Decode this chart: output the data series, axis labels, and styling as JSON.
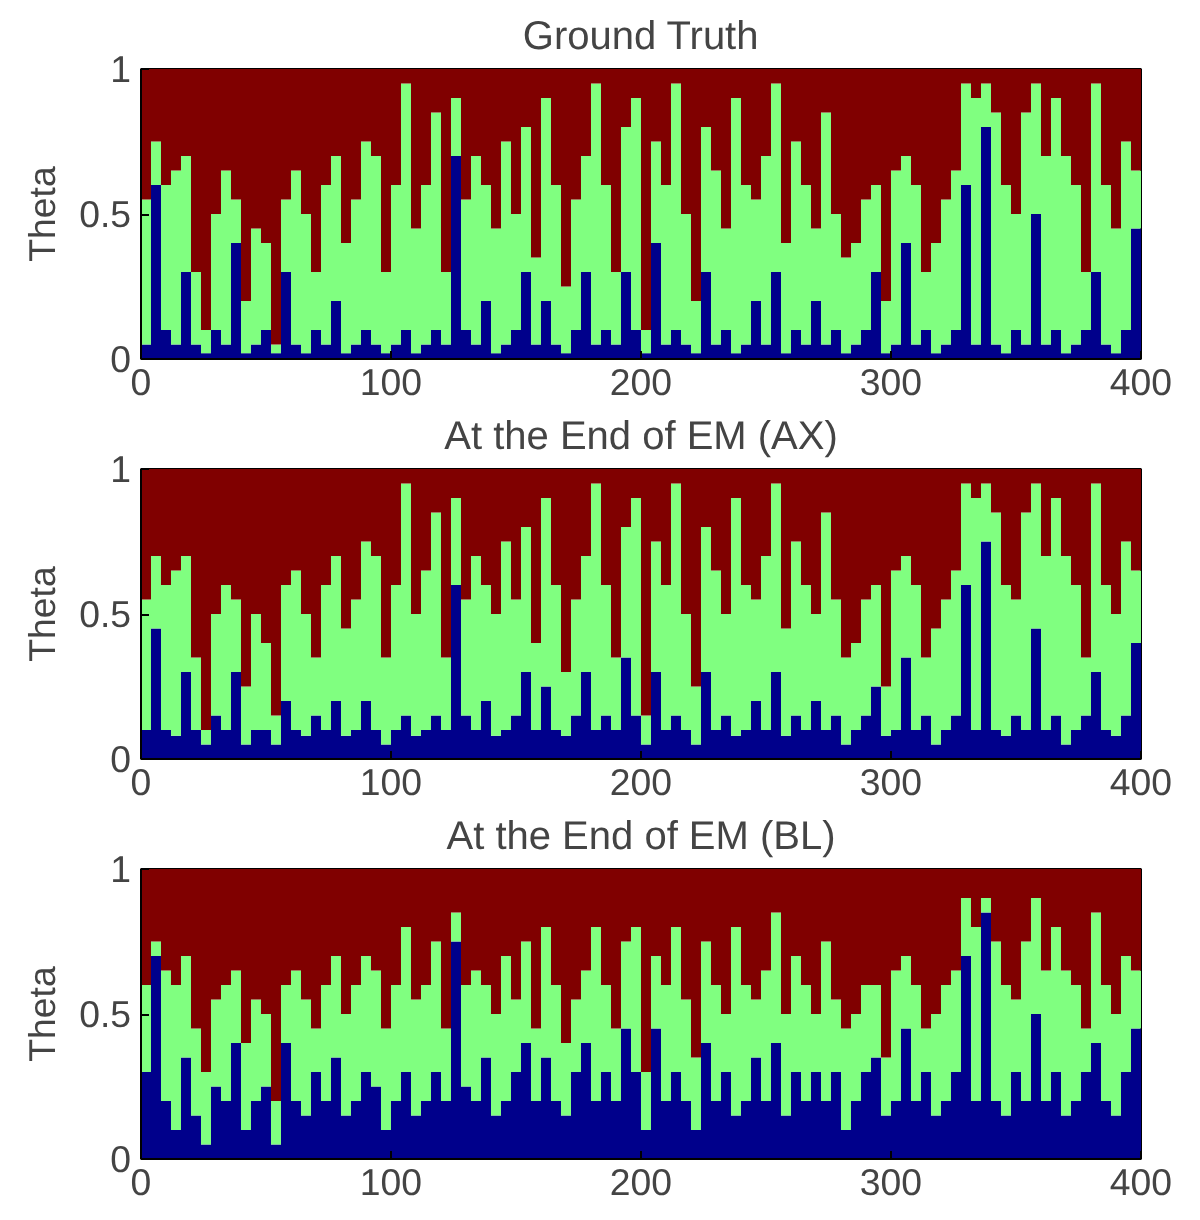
{
  "chart_data": [
    {
      "type": "bar",
      "stacked": true,
      "title": "Ground Truth",
      "ylabel": "Theta",
      "xlim": [
        0,
        400
      ],
      "xticks": [
        0,
        100,
        200,
        300,
        400
      ],
      "ylim": [
        0,
        1
      ],
      "yticks": [
        0,
        0.5,
        1
      ],
      "grid": false,
      "x": [
        2,
        6,
        10,
        14,
        18,
        22,
        26,
        30,
        34,
        38,
        42,
        46,
        50,
        54,
        58,
        62,
        66,
        70,
        74,
        78,
        82,
        86,
        90,
        94,
        98,
        102,
        106,
        110,
        114,
        118,
        122,
        126,
        130,
        134,
        138,
        142,
        146,
        150,
        154,
        158,
        162,
        166,
        170,
        174,
        178,
        182,
        186,
        190,
        194,
        198,
        202,
        206,
        210,
        214,
        218,
        222,
        226,
        230,
        234,
        238,
        242,
        246,
        250,
        254,
        258,
        262,
        266,
        270,
        274,
        278,
        282,
        286,
        290,
        294,
        298,
        302,
        306,
        310,
        314,
        318,
        322,
        326,
        330,
        334,
        338,
        342,
        346,
        350,
        354,
        358,
        362,
        366,
        370,
        374,
        378,
        382,
        386,
        390,
        394,
        398
      ],
      "series": [
        {
          "color": "#00008b",
          "values": [
            0.05,
            0.6,
            0.1,
            0.05,
            0.3,
            0.05,
            0.02,
            0.1,
            0.05,
            0.4,
            0.02,
            0.05,
            0.1,
            0.02,
            0.3,
            0.05,
            0.02,
            0.1,
            0.05,
            0.2,
            0.02,
            0.05,
            0.1,
            0.05,
            0.02,
            0.05,
            0.1,
            0.02,
            0.05,
            0.1,
            0.05,
            0.7,
            0.1,
            0.05,
            0.2,
            0.02,
            0.05,
            0.1,
            0.3,
            0.05,
            0.2,
            0.05,
            0.02,
            0.1,
            0.3,
            0.05,
            0.1,
            0.05,
            0.3,
            0.1,
            0.02,
            0.4,
            0.05,
            0.1,
            0.05,
            0.02,
            0.3,
            0.05,
            0.1,
            0.02,
            0.05,
            0.2,
            0.05,
            0.3,
            0.02,
            0.1,
            0.05,
            0.2,
            0.05,
            0.1,
            0.02,
            0.05,
            0.1,
            0.3,
            0.02,
            0.05,
            0.4,
            0.05,
            0.1,
            0.02,
            0.05,
            0.1,
            0.6,
            0.05,
            0.8,
            0.05,
            0.02,
            0.1,
            0.05,
            0.5,
            0.05,
            0.1,
            0.02,
            0.05,
            0.1,
            0.3,
            0.05,
            0.02,
            0.1,
            0.45
          ]
        },
        {
          "color": "#80ff80",
          "values": [
            0.5,
            0.15,
            0.5,
            0.6,
            0.4,
            0.25,
            0.08,
            0.4,
            0.6,
            0.15,
            0.18,
            0.4,
            0.3,
            0.03,
            0.25,
            0.6,
            0.48,
            0.2,
            0.55,
            0.5,
            0.38,
            0.5,
            0.65,
            0.65,
            0.28,
            0.55,
            0.85,
            0.43,
            0.55,
            0.75,
            0.25,
            0.2,
            0.45,
            0.65,
            0.4,
            0.43,
            0.7,
            0.4,
            0.5,
            0.3,
            0.7,
            0.55,
            0.23,
            0.45,
            0.4,
            0.9,
            0.5,
            0.25,
            0.5,
            0.8,
            0.08,
            0.35,
            0.55,
            0.85,
            0.45,
            0.18,
            0.5,
            0.6,
            0.35,
            0.88,
            0.55,
            0.35,
            0.65,
            0.65,
            0.38,
            0.65,
            0.55,
            0.25,
            0.8,
            0.4,
            0.33,
            0.35,
            0.45,
            0.3,
            0.18,
            0.6,
            0.3,
            0.55,
            0.2,
            0.38,
            0.5,
            0.55,
            0.35,
            0.85,
            0.15,
            0.8,
            0.58,
            0.4,
            0.8,
            0.45,
            0.65,
            0.8,
            0.68,
            0.55,
            0.2,
            0.65,
            0.55,
            0.43,
            0.65,
            0.2
          ]
        },
        {
          "color": "#800000",
          "values": [
            0.45,
            0.25,
            0.4,
            0.35,
            0.3,
            0.7,
            0.9,
            0.5,
            0.35,
            0.45,
            0.8,
            0.55,
            0.6,
            0.95,
            0.45,
            0.35,
            0.5,
            0.7,
            0.4,
            0.3,
            0.6,
            0.45,
            0.25,
            0.3,
            0.7,
            0.4,
            0.05,
            0.55,
            0.4,
            0.15,
            0.7,
            0.1,
            0.45,
            0.3,
            0.4,
            0.55,
            0.25,
            0.5,
            0.2,
            0.65,
            0.1,
            0.4,
            0.75,
            0.45,
            0.3,
            0.05,
            0.4,
            0.7,
            0.2,
            0.1,
            0.9,
            0.25,
            0.4,
            0.05,
            0.5,
            0.8,
            0.2,
            0.35,
            0.55,
            0.1,
            0.4,
            0.45,
            0.3,
            0.05,
            0.6,
            0.25,
            0.4,
            0.55,
            0.15,
            0.5,
            0.65,
            0.6,
            0.45,
            0.4,
            0.8,
            0.35,
            0.3,
            0.4,
            0.7,
            0.6,
            0.45,
            0.35,
            0.05,
            0.1,
            0.05,
            0.15,
            0.4,
            0.5,
            0.15,
            0.05,
            0.3,
            0.1,
            0.3,
            0.4,
            0.7,
            0.05,
            0.4,
            0.55,
            0.25,
            0.35
          ]
        }
      ]
    },
    {
      "type": "bar",
      "stacked": true,
      "title": "At the End of EM (AX)",
      "ylabel": "Theta",
      "xlim": [
        0,
        400
      ],
      "xticks": [
        0,
        100,
        200,
        300,
        400
      ],
      "ylim": [
        0,
        1
      ],
      "yticks": [
        0,
        0.5,
        1
      ],
      "grid": false,
      "x": [
        2,
        6,
        10,
        14,
        18,
        22,
        26,
        30,
        34,
        38,
        42,
        46,
        50,
        54,
        58,
        62,
        66,
        70,
        74,
        78,
        82,
        86,
        90,
        94,
        98,
        102,
        106,
        110,
        114,
        118,
        122,
        126,
        130,
        134,
        138,
        142,
        146,
        150,
        154,
        158,
        162,
        166,
        170,
        174,
        178,
        182,
        186,
        190,
        194,
        198,
        202,
        206,
        210,
        214,
        218,
        222,
        226,
        230,
        234,
        238,
        242,
        246,
        250,
        254,
        258,
        262,
        266,
        270,
        274,
        278,
        282,
        286,
        290,
        294,
        298,
        302,
        306,
        310,
        314,
        318,
        322,
        326,
        330,
        334,
        338,
        342,
        346,
        350,
        354,
        358,
        362,
        366,
        370,
        374,
        378,
        382,
        386,
        390,
        394,
        398
      ],
      "series": [
        {
          "color": "#00008b",
          "values": [
            0.1,
            0.45,
            0.1,
            0.08,
            0.3,
            0.1,
            0.05,
            0.15,
            0.1,
            0.3,
            0.05,
            0.1,
            0.1,
            0.05,
            0.2,
            0.1,
            0.08,
            0.15,
            0.1,
            0.2,
            0.08,
            0.1,
            0.2,
            0.1,
            0.05,
            0.1,
            0.15,
            0.08,
            0.1,
            0.15,
            0.1,
            0.6,
            0.15,
            0.1,
            0.2,
            0.08,
            0.1,
            0.15,
            0.3,
            0.1,
            0.25,
            0.1,
            0.08,
            0.15,
            0.3,
            0.1,
            0.15,
            0.1,
            0.35,
            0.15,
            0.05,
            0.3,
            0.1,
            0.15,
            0.1,
            0.05,
            0.3,
            0.1,
            0.15,
            0.08,
            0.1,
            0.2,
            0.1,
            0.3,
            0.08,
            0.15,
            0.1,
            0.2,
            0.1,
            0.15,
            0.05,
            0.1,
            0.15,
            0.25,
            0.08,
            0.1,
            0.35,
            0.1,
            0.15,
            0.05,
            0.1,
            0.15,
            0.6,
            0.1,
            0.75,
            0.1,
            0.08,
            0.15,
            0.1,
            0.45,
            0.1,
            0.15,
            0.05,
            0.1,
            0.15,
            0.3,
            0.1,
            0.08,
            0.15,
            0.4
          ]
        },
        {
          "color": "#80ff80",
          "values": [
            0.45,
            0.25,
            0.5,
            0.57,
            0.4,
            0.25,
            0.05,
            0.35,
            0.5,
            0.25,
            0.2,
            0.4,
            0.3,
            0.1,
            0.4,
            0.55,
            0.42,
            0.2,
            0.5,
            0.5,
            0.37,
            0.45,
            0.55,
            0.6,
            0.3,
            0.5,
            0.8,
            0.42,
            0.55,
            0.7,
            0.25,
            0.3,
            0.4,
            0.6,
            0.4,
            0.42,
            0.65,
            0.4,
            0.5,
            0.3,
            0.65,
            0.5,
            0.22,
            0.4,
            0.4,
            0.85,
            0.45,
            0.25,
            0.45,
            0.75,
            0.1,
            0.45,
            0.5,
            0.8,
            0.4,
            0.2,
            0.5,
            0.55,
            0.35,
            0.82,
            0.5,
            0.35,
            0.6,
            0.65,
            0.37,
            0.6,
            0.5,
            0.3,
            0.75,
            0.4,
            0.3,
            0.3,
            0.4,
            0.35,
            0.17,
            0.55,
            0.35,
            0.5,
            0.2,
            0.4,
            0.45,
            0.5,
            0.35,
            0.8,
            0.2,
            0.75,
            0.52,
            0.4,
            0.75,
            0.5,
            0.6,
            0.75,
            0.65,
            0.5,
            0.2,
            0.65,
            0.5,
            0.42,
            0.6,
            0.25
          ]
        },
        {
          "color": "#800000",
          "values": [
            0.45,
            0.3,
            0.4,
            0.35,
            0.3,
            0.65,
            0.9,
            0.5,
            0.4,
            0.45,
            0.75,
            0.5,
            0.6,
            0.85,
            0.4,
            0.35,
            0.5,
            0.65,
            0.4,
            0.3,
            0.55,
            0.45,
            0.25,
            0.3,
            0.65,
            0.4,
            0.05,
            0.5,
            0.35,
            0.15,
            0.65,
            0.1,
            0.45,
            0.3,
            0.4,
            0.5,
            0.25,
            0.45,
            0.2,
            0.6,
            0.1,
            0.4,
            0.7,
            0.45,
            0.3,
            0.05,
            0.4,
            0.65,
            0.2,
            0.1,
            0.85,
            0.25,
            0.4,
            0.05,
            0.5,
            0.75,
            0.2,
            0.35,
            0.5,
            0.1,
            0.4,
            0.45,
            0.3,
            0.05,
            0.55,
            0.25,
            0.4,
            0.5,
            0.15,
            0.45,
            0.65,
            0.6,
            0.45,
            0.4,
            0.75,
            0.35,
            0.3,
            0.4,
            0.65,
            0.55,
            0.45,
            0.35,
            0.05,
            0.1,
            0.05,
            0.15,
            0.4,
            0.45,
            0.15,
            0.05,
            0.3,
            0.1,
            0.3,
            0.4,
            0.65,
            0.05,
            0.4,
            0.5,
            0.25,
            0.35
          ]
        }
      ]
    },
    {
      "type": "bar",
      "stacked": true,
      "title": "At the End of EM (BL)",
      "ylabel": "Theta",
      "xlim": [
        0,
        400
      ],
      "xticks": [
        0,
        100,
        200,
        300,
        400
      ],
      "ylim": [
        0,
        1
      ],
      "yticks": [
        0,
        0.5,
        1
      ],
      "grid": false,
      "x": [
        2,
        6,
        10,
        14,
        18,
        22,
        26,
        30,
        34,
        38,
        42,
        46,
        50,
        54,
        58,
        62,
        66,
        70,
        74,
        78,
        82,
        86,
        90,
        94,
        98,
        102,
        106,
        110,
        114,
        118,
        122,
        126,
        130,
        134,
        138,
        142,
        146,
        150,
        154,
        158,
        162,
        166,
        170,
        174,
        178,
        182,
        186,
        190,
        194,
        198,
        202,
        206,
        210,
        214,
        218,
        222,
        226,
        230,
        234,
        238,
        242,
        246,
        250,
        254,
        258,
        262,
        266,
        270,
        274,
        278,
        282,
        286,
        290,
        294,
        298,
        302,
        306,
        310,
        314,
        318,
        322,
        326,
        330,
        334,
        338,
        342,
        346,
        350,
        354,
        358,
        362,
        366,
        370,
        374,
        378,
        382,
        386,
        390,
        394,
        398
      ],
      "series": [
        {
          "color": "#00008b",
          "values": [
            0.3,
            0.7,
            0.2,
            0.1,
            0.35,
            0.15,
            0.05,
            0.25,
            0.2,
            0.4,
            0.1,
            0.2,
            0.25,
            0.05,
            0.4,
            0.2,
            0.15,
            0.3,
            0.2,
            0.35,
            0.15,
            0.2,
            0.3,
            0.25,
            0.1,
            0.2,
            0.3,
            0.15,
            0.2,
            0.3,
            0.2,
            0.75,
            0.25,
            0.2,
            0.35,
            0.15,
            0.2,
            0.3,
            0.4,
            0.2,
            0.35,
            0.2,
            0.15,
            0.3,
            0.4,
            0.2,
            0.3,
            0.2,
            0.45,
            0.3,
            0.1,
            0.45,
            0.2,
            0.3,
            0.2,
            0.1,
            0.4,
            0.2,
            0.3,
            0.15,
            0.2,
            0.35,
            0.2,
            0.4,
            0.15,
            0.3,
            0.2,
            0.3,
            0.2,
            0.3,
            0.1,
            0.2,
            0.3,
            0.35,
            0.15,
            0.2,
            0.45,
            0.2,
            0.3,
            0.15,
            0.2,
            0.3,
            0.7,
            0.2,
            0.85,
            0.2,
            0.15,
            0.3,
            0.2,
            0.5,
            0.2,
            0.3,
            0.15,
            0.2,
            0.3,
            0.4,
            0.2,
            0.15,
            0.3,
            0.45
          ]
        },
        {
          "color": "#80ff80",
          "values": [
            0.3,
            0.05,
            0.45,
            0.5,
            0.35,
            0.3,
            0.25,
            0.3,
            0.4,
            0.25,
            0.3,
            0.35,
            0.25,
            0.15,
            0.2,
            0.45,
            0.4,
            0.15,
            0.4,
            0.35,
            0.35,
            0.4,
            0.4,
            0.4,
            0.35,
            0.4,
            0.5,
            0.4,
            0.4,
            0.45,
            0.25,
            0.1,
            0.35,
            0.45,
            0.25,
            0.35,
            0.5,
            0.25,
            0.35,
            0.25,
            0.45,
            0.4,
            0.25,
            0.25,
            0.25,
            0.6,
            0.3,
            0.25,
            0.3,
            0.5,
            0.2,
            0.25,
            0.4,
            0.5,
            0.35,
            0.25,
            0.35,
            0.4,
            0.2,
            0.65,
            0.4,
            0.2,
            0.45,
            0.45,
            0.35,
            0.4,
            0.4,
            0.2,
            0.55,
            0.25,
            0.35,
            0.3,
            0.3,
            0.25,
            0.2,
            0.45,
            0.25,
            0.4,
            0.15,
            0.35,
            0.4,
            0.35,
            0.2,
            0.6,
            0.05,
            0.55,
            0.45,
            0.25,
            0.55,
            0.4,
            0.45,
            0.5,
            0.5,
            0.4,
            0.15,
            0.45,
            0.4,
            0.35,
            0.4,
            0.2
          ]
        },
        {
          "color": "#800000",
          "values": [
            0.4,
            0.25,
            0.35,
            0.4,
            0.3,
            0.55,
            0.7,
            0.45,
            0.4,
            0.35,
            0.6,
            0.45,
            0.5,
            0.8,
            0.4,
            0.35,
            0.45,
            0.55,
            0.4,
            0.3,
            0.5,
            0.4,
            0.3,
            0.35,
            0.55,
            0.4,
            0.2,
            0.45,
            0.4,
            0.25,
            0.55,
            0.15,
            0.4,
            0.35,
            0.4,
            0.5,
            0.3,
            0.45,
            0.25,
            0.55,
            0.2,
            0.4,
            0.6,
            0.45,
            0.35,
            0.2,
            0.4,
            0.55,
            0.25,
            0.2,
            0.7,
            0.3,
            0.4,
            0.2,
            0.45,
            0.65,
            0.25,
            0.4,
            0.5,
            0.2,
            0.4,
            0.45,
            0.35,
            0.15,
            0.5,
            0.3,
            0.4,
            0.5,
            0.25,
            0.45,
            0.55,
            0.5,
            0.4,
            0.4,
            0.65,
            0.35,
            0.3,
            0.4,
            0.55,
            0.5,
            0.4,
            0.35,
            0.1,
            0.2,
            0.1,
            0.25,
            0.4,
            0.45,
            0.25,
            0.1,
            0.35,
            0.2,
            0.35,
            0.4,
            0.55,
            0.15,
            0.4,
            0.5,
            0.3,
            0.35
          ]
        }
      ]
    }
  ]
}
